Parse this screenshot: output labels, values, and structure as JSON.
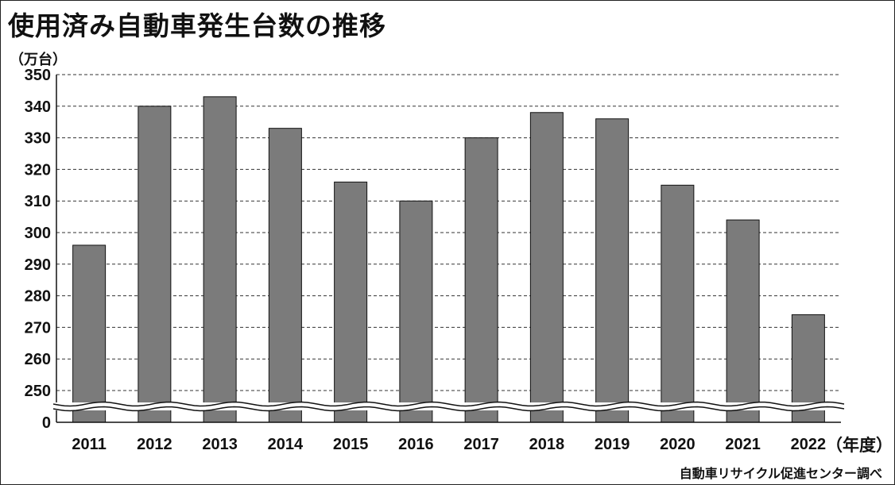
{
  "title": "使用済み自動車発生台数の推移",
  "unit_label": "（万台）",
  "x_unit_label": "（年度）",
  "source": "自動車リサイクル促進センター調べ",
  "colors": {
    "bar": "#7b7b7b",
    "bar_stroke": "#111111",
    "grid": "#333333",
    "axis": "#111111"
  },
  "chart_data": {
    "type": "bar",
    "categories": [
      "2011",
      "2012",
      "2013",
      "2014",
      "2015",
      "2016",
      "2017",
      "2018",
      "2019",
      "2020",
      "2021",
      "2022"
    ],
    "values": [
      296,
      340,
      343,
      333,
      316,
      310,
      330,
      338,
      336,
      315,
      304,
      274
    ],
    "title": "使用済み自動車発生台数の推移",
    "xlabel": "（年度）",
    "ylabel": "（万台）",
    "ylim": [
      250,
      350
    ],
    "axis_break": true,
    "yticks": [
      "350",
      "340",
      "330",
      "320",
      "310",
      "300",
      "290",
      "280",
      "270",
      "260",
      "250",
      "0"
    ],
    "grid": true,
    "legend": "none"
  }
}
